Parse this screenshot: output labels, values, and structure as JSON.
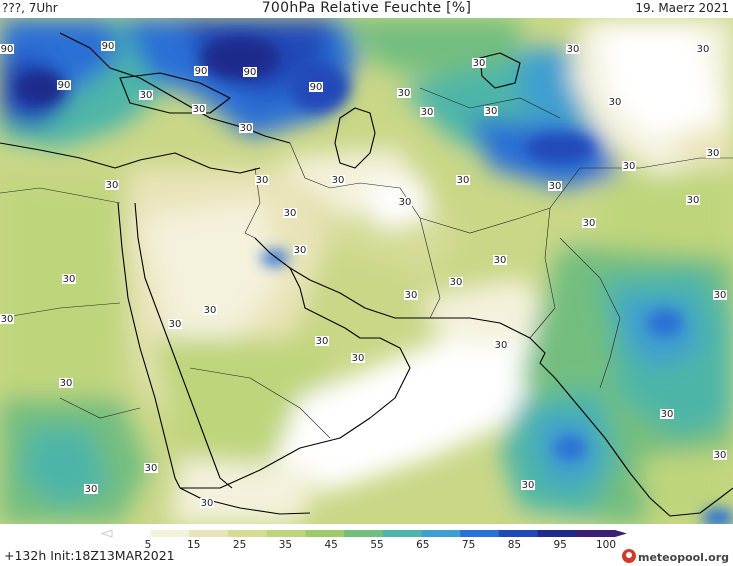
{
  "header": {
    "left": "???, 7Uhr",
    "title": "700hPa Relative Feuchte [%]",
    "date": "19. Maerz 2021"
  },
  "footer": {
    "run_info": "+132h  Init:18Z13MAR2021",
    "logo": "meteopool.org"
  },
  "colorbar": {
    "labels": [
      "5",
      "15",
      "25",
      "35",
      "45",
      "55",
      "65",
      "75",
      "85",
      "95",
      "100"
    ],
    "colors": [
      "#ffffff",
      "#f4f1dc",
      "#e9e4b9",
      "#d6dc95",
      "#bfd57c",
      "#9fca6c",
      "#73be7f",
      "#4eb5a8",
      "#3f9fd0",
      "#2c6fd6",
      "#2049b8",
      "#1f2a8c",
      "#3a1f75"
    ]
  },
  "map": {
    "contour_labels": [
      "90",
      "90",
      "90",
      "90",
      "90",
      "90",
      "30",
      "30",
      "30",
      "30",
      "30",
      "30",
      "30",
      "30",
      "30",
      "30",
      "30",
      "30",
      "30",
      "30",
      "30",
      "30",
      "30",
      "30",
      "30",
      "30",
      "30",
      "30",
      "30",
      "30",
      "30",
      "30",
      "30",
      "30",
      "30",
      "30",
      "30",
      "30",
      "30",
      "30",
      "30",
      "30",
      "30",
      "30",
      "30",
      "30"
    ]
  }
}
